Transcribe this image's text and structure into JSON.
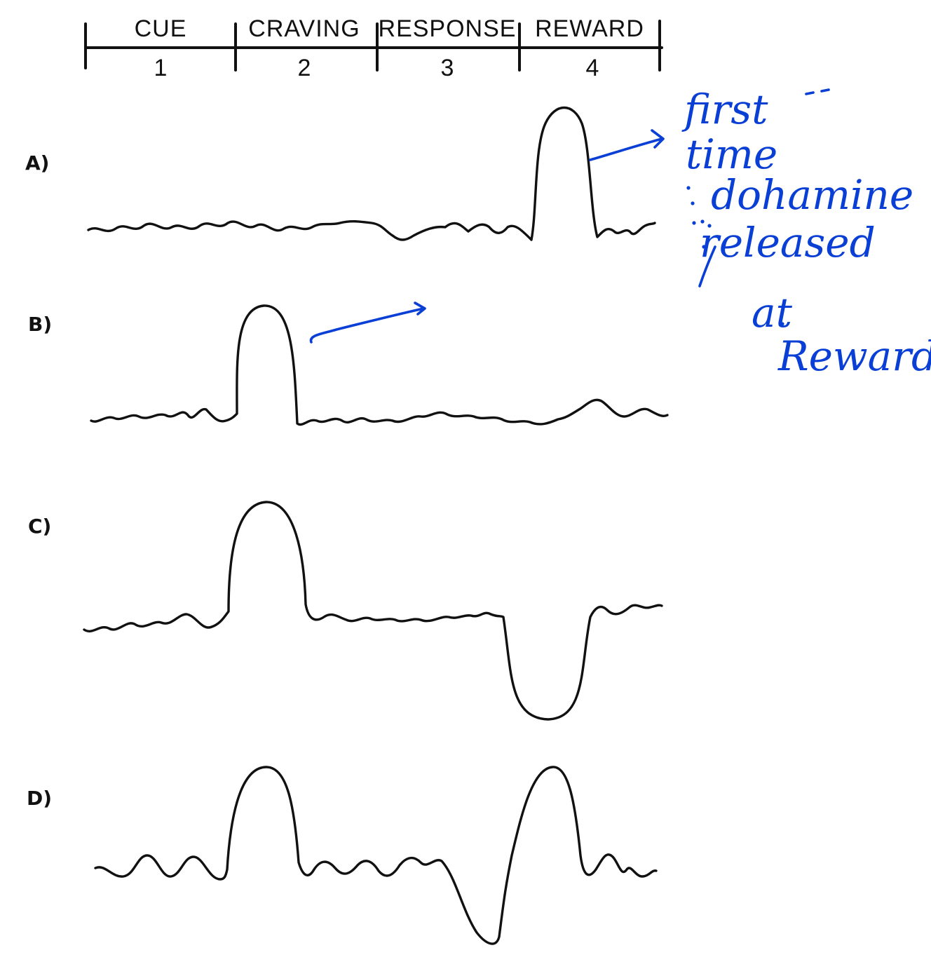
{
  "timeline": {
    "phases": [
      {
        "name": "CUE",
        "number": "1"
      },
      {
        "name": "CRAVING",
        "number": "2"
      },
      {
        "name": "RESPONSE",
        "number": "3"
      },
      {
        "name": "REWARD",
        "number": "4"
      }
    ]
  },
  "rows": [
    {
      "label": "A)"
    },
    {
      "label": "B)"
    },
    {
      "label": "C)"
    },
    {
      "label": "D)"
    }
  ],
  "annotation": {
    "lines": [
      "first",
      "time",
      "dohamine",
      "released",
      "at",
      "Reward"
    ],
    "color": "#0a3fd6"
  }
}
